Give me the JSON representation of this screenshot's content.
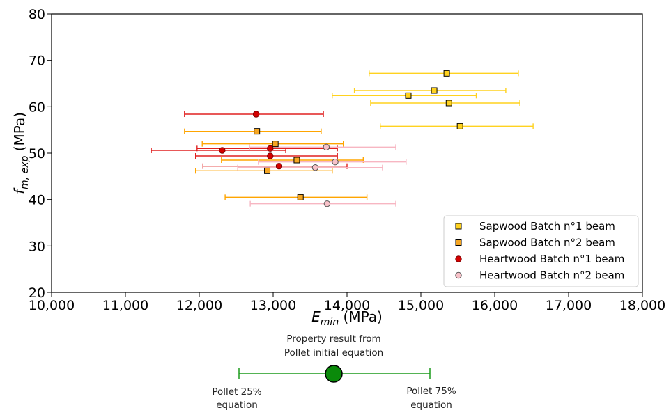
{
  "chart_data": {
    "type": "scatter",
    "xlabel": {
      "main": "E",
      "sub": "min",
      "unit": " (MPa)"
    },
    "ylabel": {
      "main": "f",
      "sub": "m, exp",
      "unit": " (MPa)"
    },
    "xlim": [
      10000,
      18000
    ],
    "ylim": [
      20,
      80
    ],
    "x_ticks": [
      "10,000",
      "11,000",
      "12,000",
      "13,000",
      "14,000",
      "15,000",
      "16,000",
      "17,000",
      "18,000"
    ],
    "y_ticks": [
      "20",
      "30",
      "40",
      "50",
      "60",
      "70",
      "80"
    ],
    "grid": false,
    "legend_position": "lower-right",
    "series": [
      {
        "name": "Sapwood Batch n°1 beam",
        "marker": "square",
        "color": "#ffd21f",
        "edge": "#000000",
        "bar_color": "#ffd21f",
        "points": [
          {
            "x": 15350,
            "y": 67.2,
            "xlo": 14300,
            "xhi": 16320
          },
          {
            "x": 15180,
            "y": 63.5,
            "xlo": 14100,
            "xhi": 16150
          },
          {
            "x": 14830,
            "y": 62.4,
            "xlo": 13800,
            "xhi": 15750
          },
          {
            "x": 15380,
            "y": 60.8,
            "xlo": 14320,
            "xhi": 16340
          },
          {
            "x": 15530,
            "y": 55.8,
            "xlo": 14450,
            "xhi": 16520
          }
        ]
      },
      {
        "name": "Sapwood Batch n°2 beam",
        "marker": "square",
        "color": "#f5a623",
        "edge": "#000000",
        "bar_color": "#ffa500",
        "points": [
          {
            "x": 12780,
            "y": 54.7,
            "xlo": 11800,
            "xhi": 13650
          },
          {
            "x": 13030,
            "y": 52.0,
            "xlo": 12040,
            "xhi": 13950
          },
          {
            "x": 13320,
            "y": 48.5,
            "xlo": 12300,
            "xhi": 14220
          },
          {
            "x": 12920,
            "y": 46.2,
            "xlo": 11950,
            "xhi": 13800
          },
          {
            "x": 13370,
            "y": 40.5,
            "xlo": 12350,
            "xhi": 14270
          }
        ]
      },
      {
        "name": "Heartwood Batch n°1 beam",
        "marker": "circle",
        "color": "#d40000",
        "edge": "#7a0000",
        "bar_color": "#e02020",
        "points": [
          {
            "x": 12770,
            "y": 58.4,
            "xlo": 11800,
            "xhi": 13680
          },
          {
            "x": 12310,
            "y": 50.6,
            "xlo": 11350,
            "xhi": 13170
          },
          {
            "x": 12960,
            "y": 51.0,
            "xlo": 11970,
            "xhi": 13870
          },
          {
            "x": 12960,
            "y": 49.4,
            "xlo": 11950,
            "xhi": 13870
          },
          {
            "x": 13080,
            "y": 47.2,
            "xlo": 12050,
            "xhi": 14000
          }
        ]
      },
      {
        "name": "Heartwood Batch n°2 beam",
        "marker": "circle",
        "color": "#f7c1c8",
        "edge": "#555555",
        "bar_color": "#f7b6c2",
        "points": [
          {
            "x": 13720,
            "y": 51.3,
            "xlo": 12680,
            "xhi": 14660
          },
          {
            "x": 13840,
            "y": 48.1,
            "xlo": 12800,
            "xhi": 14800
          },
          {
            "x": 13570,
            "y": 46.9,
            "xlo": 12520,
            "xhi": 14480
          },
          {
            "x": 13730,
            "y": 39.1,
            "xlo": 12690,
            "xhi": 14660
          }
        ]
      }
    ]
  },
  "key": {
    "center_label_line1": "Property result from",
    "center_label_line2": "Pollet initial equation",
    "left_label_line1": "Pollet 25%",
    "left_label_line2": "equation",
    "right_label_line1": "Pollet 75%",
    "right_label_line2": "equation",
    "marker_color": "#0a8a0a",
    "line_color": "#1a9a1a"
  }
}
